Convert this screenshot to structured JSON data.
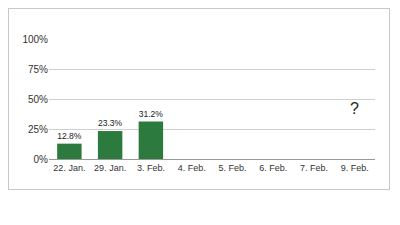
{
  "chart_data": {
    "type": "bar",
    "categories": [
      "22. Jan.",
      "29. Jan.",
      "3. Feb.",
      "4. Feb.",
      "5. Feb.",
      "6. Feb.",
      "7. Feb.",
      "9. Feb."
    ],
    "values": [
      12.8,
      23.3,
      31.2,
      null,
      null,
      null,
      null,
      null
    ],
    "value_labels": [
      "12.8%",
      "23.3%",
      "31.2%",
      null,
      null,
      null,
      null,
      null
    ],
    "data_labels": true,
    "color": "#2d7a3e",
    "ylim": [
      0,
      100
    ],
    "yticks": [
      {
        "value": 0,
        "label": "0%"
      },
      {
        "value": 25,
        "label": "25%"
      },
      {
        "value": 50,
        "label": "50%"
      },
      {
        "value": 75,
        "label": "75%"
      },
      {
        "value": 100,
        "label": "100%"
      }
    ],
    "grid": true,
    "annotations": [
      {
        "text": "?",
        "x": "9. Feb.",
        "y": 42
      }
    ]
  }
}
